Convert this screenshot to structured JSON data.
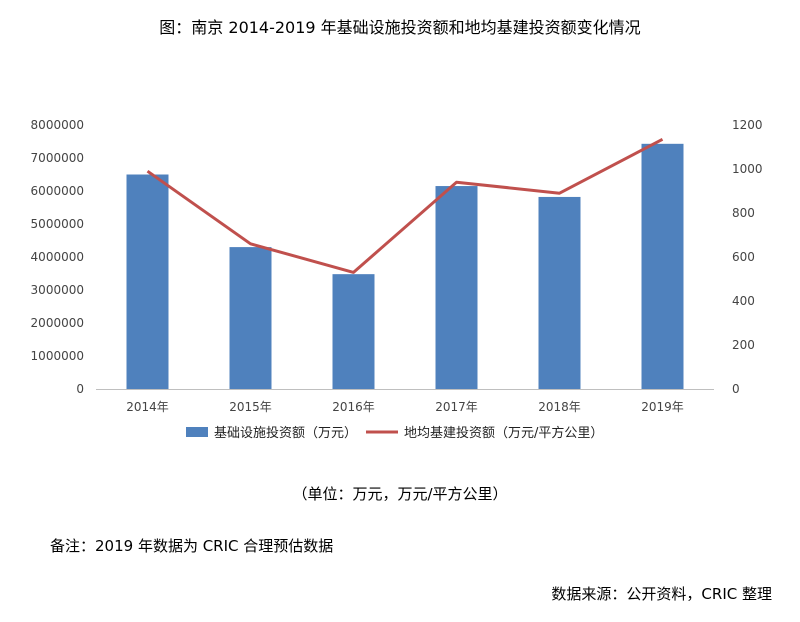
{
  "header": {
    "title": "图：南京 2014-2019 年基础设施投资额和地均基建投资额变化情况"
  },
  "footer": {
    "unit": "（单位：万元，万元/平方公里）",
    "note": "备注：2019 年数据为 CRIC 合理预估数据",
    "source": "数据来源：公开资料，CRIC 整理"
  },
  "chart_data": {
    "type": "bar",
    "title": "图：南京 2014-2019 年基础设施投资额和地均基建投资额变化情况",
    "categories": [
      "2014年",
      "2015年",
      "2016年",
      "2017年",
      "2018年",
      "2019年"
    ],
    "series": [
      {
        "name": "基础设施投资额（万元）",
        "type": "bar",
        "axis": "left",
        "color": "#4f81bd",
        "values": [
          6500000,
          4300000,
          3480000,
          6150000,
          5820000,
          7430000
        ]
      },
      {
        "name": "地均基建投资额（万元/平方公里）",
        "type": "line",
        "axis": "right",
        "color": "#c0504d",
        "values": [
          990,
          660,
          530,
          940,
          890,
          1135
        ]
      }
    ],
    "y_left": {
      "min": 0,
      "max": 8000000,
      "step": 1000000,
      "ticks": [
        "0",
        "1000000",
        "2000000",
        "3000000",
        "4000000",
        "5000000",
        "6000000",
        "7000000",
        "8000000"
      ]
    },
    "y_right": {
      "min": 0,
      "max": 1200,
      "step": 200,
      "ticks": [
        "0",
        "200",
        "400",
        "600",
        "800",
        "1000",
        "1200"
      ]
    },
    "grid": false,
    "legend": "bottom"
  }
}
